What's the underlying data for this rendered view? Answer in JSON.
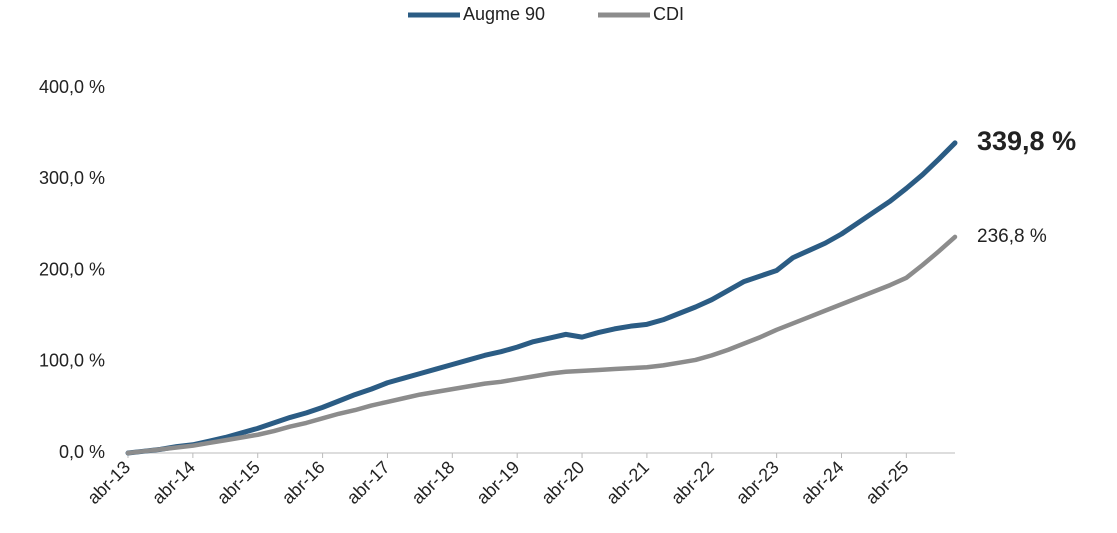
{
  "chart_data": {
    "type": "line",
    "categories": [
      "abr-13",
      null,
      null,
      null,
      "abr-14",
      null,
      null,
      null,
      "abr-15",
      null,
      null,
      null,
      "abr-16",
      null,
      null,
      null,
      "abr-17",
      null,
      null,
      null,
      "abr-18",
      null,
      null,
      null,
      "abr-19",
      null,
      null,
      null,
      "abr-20",
      null,
      null,
      null,
      "abr-21",
      null,
      null,
      null,
      "abr-22",
      null,
      null,
      null,
      "abr-23",
      null,
      null,
      null,
      "abr-24",
      null,
      null,
      null,
      "abr-25",
      null,
      null,
      null
    ],
    "series": [
      {
        "name": "Augme 90",
        "color": "#2b5c84",
        "values": [
          0,
          2,
          4,
          7,
          9,
          13,
          17,
          22,
          27,
          33,
          39,
          44,
          50,
          57,
          64,
          70,
          77,
          82,
          87,
          92,
          97,
          102,
          107,
          111,
          116,
          122,
          126,
          130,
          127,
          132,
          136,
          139,
          141,
          146,
          153,
          160,
          168,
          178,
          188,
          194,
          200,
          214,
          222,
          230,
          240,
          252,
          264,
          276,
          290,
          305,
          322,
          339.8
        ],
        "value_labels": [
          null,
          null,
          null,
          null,
          null,
          null,
          null,
          null,
          null,
          null,
          null,
          null,
          null,
          null,
          null,
          null,
          null,
          null,
          null,
          null,
          null,
          null,
          null,
          null,
          null,
          null,
          null,
          null,
          null,
          null,
          null,
          null,
          null,
          null,
          null,
          null,
          null,
          null,
          null,
          null,
          null,
          null,
          null,
          null,
          null,
          null,
          null,
          null,
          null,
          null,
          null,
          "339,8 %"
        ]
      },
      {
        "name": "CDI",
        "color": "#8c8c8c",
        "values": [
          0,
          2,
          4,
          6,
          8,
          11,
          14,
          17,
          20,
          24,
          29,
          33,
          38,
          43,
          47,
          52,
          56,
          60,
          64,
          67,
          70,
          73,
          76,
          78,
          81,
          84,
          87,
          89,
          90,
          91,
          92,
          93,
          94,
          96,
          99,
          102,
          107,
          113,
          120,
          127,
          135,
          142,
          149,
          156,
          163,
          170,
          177,
          184,
          192,
          206,
          221,
          236.8
        ],
        "value_labels": [
          null,
          null,
          null,
          null,
          null,
          null,
          null,
          null,
          null,
          null,
          null,
          null,
          null,
          null,
          null,
          null,
          null,
          null,
          null,
          null,
          null,
          null,
          null,
          null,
          null,
          null,
          null,
          null,
          null,
          null,
          null,
          null,
          null,
          null,
          null,
          null,
          null,
          null,
          null,
          null,
          null,
          null,
          null,
          null,
          null,
          null,
          null,
          null,
          null,
          null,
          null,
          "236,8 %"
        ]
      }
    ],
    "ylim": [
      0,
      400
    ],
    "yticks": [
      {
        "value": 0,
        "label": "0,0 %"
      },
      {
        "value": 100,
        "label": "100,0 %"
      },
      {
        "value": 200,
        "label": "200,0 %"
      },
      {
        "value": 300,
        "label": "300,0 %"
      },
      {
        "value": 400,
        "label": "400,0 %"
      }
    ],
    "grid": false,
    "legend": "top"
  }
}
